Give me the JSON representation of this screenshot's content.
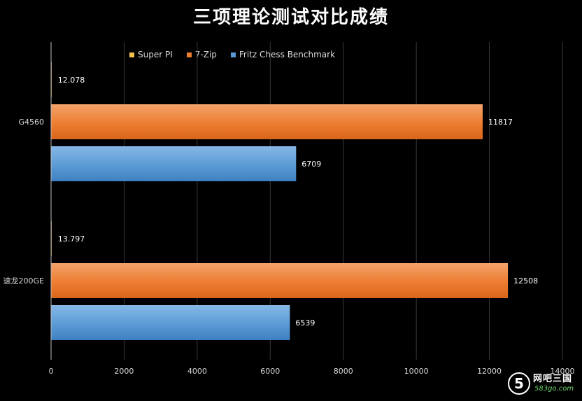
{
  "chart_data": {
    "type": "bar",
    "orientation": "horizontal",
    "title": "三项理论测试对比成绩",
    "categories": [
      "G4560",
      "速龙200GE"
    ],
    "series": [
      {
        "name": "Super PI",
        "color": "#f2c14e",
        "values": [
          12.078,
          13.797
        ],
        "labels": [
          "12.078",
          "13.797"
        ]
      },
      {
        "name": "7-Zip",
        "color": "#ed7d31",
        "values": [
          11817,
          12508
        ],
        "labels": [
          "11817",
          "12508"
        ]
      },
      {
        "name": "Fritz Chess Benchmark",
        "color": "#5b9bd5",
        "values": [
          6709,
          6539
        ],
        "labels": [
          "6709",
          "6539"
        ]
      }
    ],
    "xlim": [
      0,
      14000
    ],
    "xticks": [
      0,
      2000,
      4000,
      6000,
      8000,
      10000,
      12000,
      14000
    ],
    "grid": "vertical",
    "legend": "top-left"
  },
  "watermark": {
    "badge": "5",
    "name": "网吧三国",
    "url": "583go.com"
  }
}
